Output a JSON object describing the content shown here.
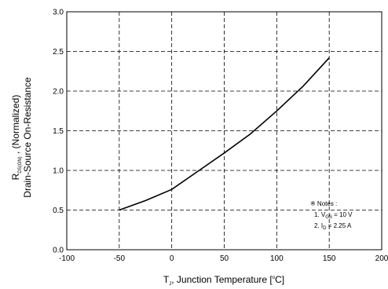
{
  "chart_data": {
    "type": "line",
    "x": [
      -50,
      -25,
      0,
      25,
      50,
      75,
      100,
      125,
      150
    ],
    "series": [
      {
        "values": [
          0.5,
          0.62,
          0.76,
          0.99,
          1.22,
          1.46,
          1.75,
          2.06,
          2.42
        ]
      }
    ],
    "xlim": [
      -100,
      200
    ],
    "ylim": [
      0.0,
      3.0
    ],
    "x_ticks": [
      "-100",
      "-50",
      "0",
      "50",
      "100",
      "150",
      "200"
    ],
    "y_ticks": [
      "0.0",
      "0.5",
      "1.0",
      "1.5",
      "2.0",
      "2.5",
      "3.0"
    ],
    "xlabel": {
      "main": "T",
      "sub": "J",
      "rest": ", Junction Temperature [",
      "deg": "o",
      "end": "C]"
    },
    "ylabel": {
      "line1_main": "R",
      "line1_sub": "DS(ON)",
      "line1_rest": " , (Normalized)",
      "line2": "Drain-Source On-Resistance"
    },
    "notes": {
      "title": "※ Notes :",
      "note1_prefix": "1. V",
      "note1_sub": "GS",
      "note1_rest": " = 10 V",
      "note2_prefix": "2. I",
      "note2_sub": "D",
      "note2_rest": " = 2.25 A"
    },
    "grid": true
  }
}
